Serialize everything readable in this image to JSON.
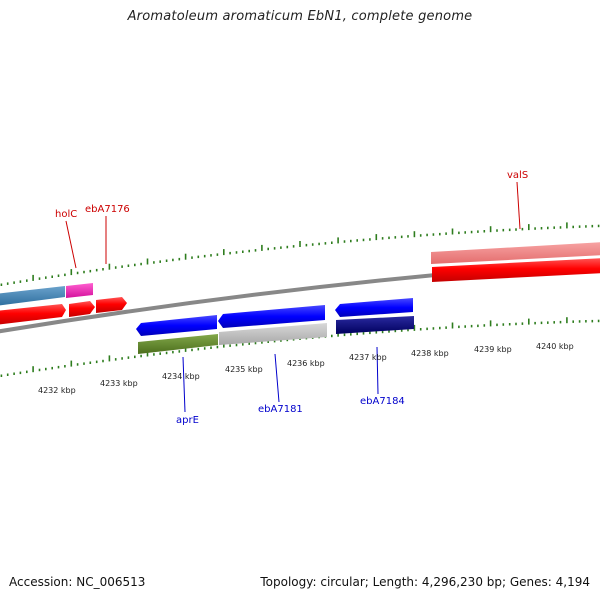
{
  "title": "Aromatoleum aromaticum EbN1, complete genome",
  "footer": {
    "accession": "Accession: NC_006513",
    "topology": "Topology: circular; Length: 4,296,230 bp; Genes: 4,194"
  },
  "axis_labels": [
    "4232 kbp",
    "4233 kbp",
    "4234 kbp",
    "4235 kbp",
    "4236 kbp",
    "4237 kbp",
    "4238 kbp",
    "4239 kbp",
    "4240 kbp"
  ],
  "gene_labels": {
    "holC": "holC",
    "ebA7176": "ebA7176",
    "valS": "valS",
    "aprE": "aprE",
    "ebA7181": "ebA7181",
    "ebA7184": "ebA7184"
  },
  "colors": {
    "forward_label": "#cc0000",
    "reverse_label": "#0000cc",
    "tick": "#2e7d1e",
    "backbone": "#888888"
  }
}
